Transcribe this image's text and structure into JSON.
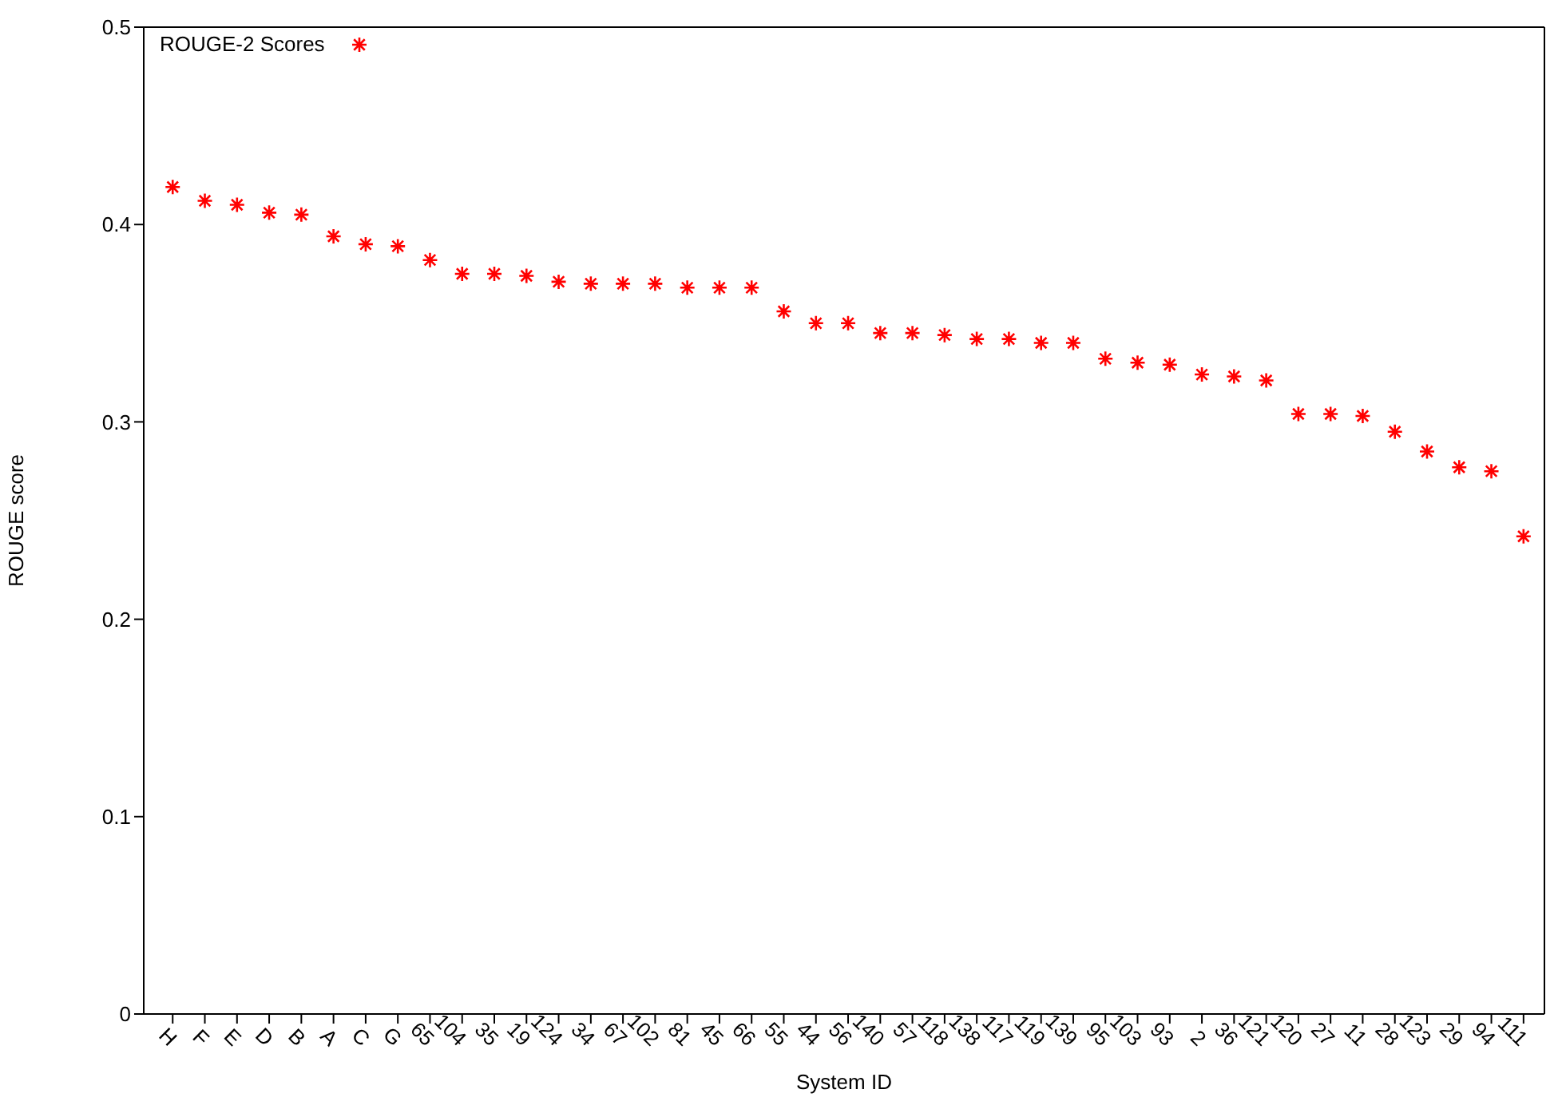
{
  "chart_data": {
    "type": "scatter",
    "xlabel": "System ID",
    "ylabel": "ROUGE score",
    "categories": [
      "H",
      "F",
      "E",
      "D",
      "B",
      "A",
      "C",
      "G",
      "65",
      "104",
      "35",
      "19",
      "124",
      "34",
      "67",
      "102",
      "81",
      "45",
      "66",
      "55",
      "44",
      "56",
      "140",
      "57",
      "118",
      "138",
      "117",
      "119",
      "139",
      "95",
      "103",
      "93",
      "2",
      "36",
      "121",
      "120",
      "27",
      "11",
      "28",
      "123",
      "29",
      "94",
      "111"
    ],
    "series": [
      {
        "name": "ROUGE-2 Scores",
        "color": "#ff0000",
        "values": [
          0.419,
          0.412,
          0.41,
          0.406,
          0.405,
          0.394,
          0.39,
          0.389,
          0.382,
          0.375,
          0.375,
          0.374,
          0.371,
          0.37,
          0.37,
          0.37,
          0.368,
          0.368,
          0.368,
          0.356,
          0.35,
          0.35,
          0.345,
          0.345,
          0.344,
          0.342,
          0.342,
          0.34,
          0.34,
          0.332,
          0.33,
          0.329,
          0.324,
          0.323,
          0.321,
          0.304,
          0.304,
          0.303,
          0.295,
          0.285,
          0.277,
          0.275,
          0.242
        ]
      }
    ],
    "ylim": [
      0,
      0.5
    ],
    "yticks": [
      0,
      0.1,
      0.2,
      0.3,
      0.4,
      0.5
    ],
    "marker": "cross",
    "legend": "top left"
  }
}
